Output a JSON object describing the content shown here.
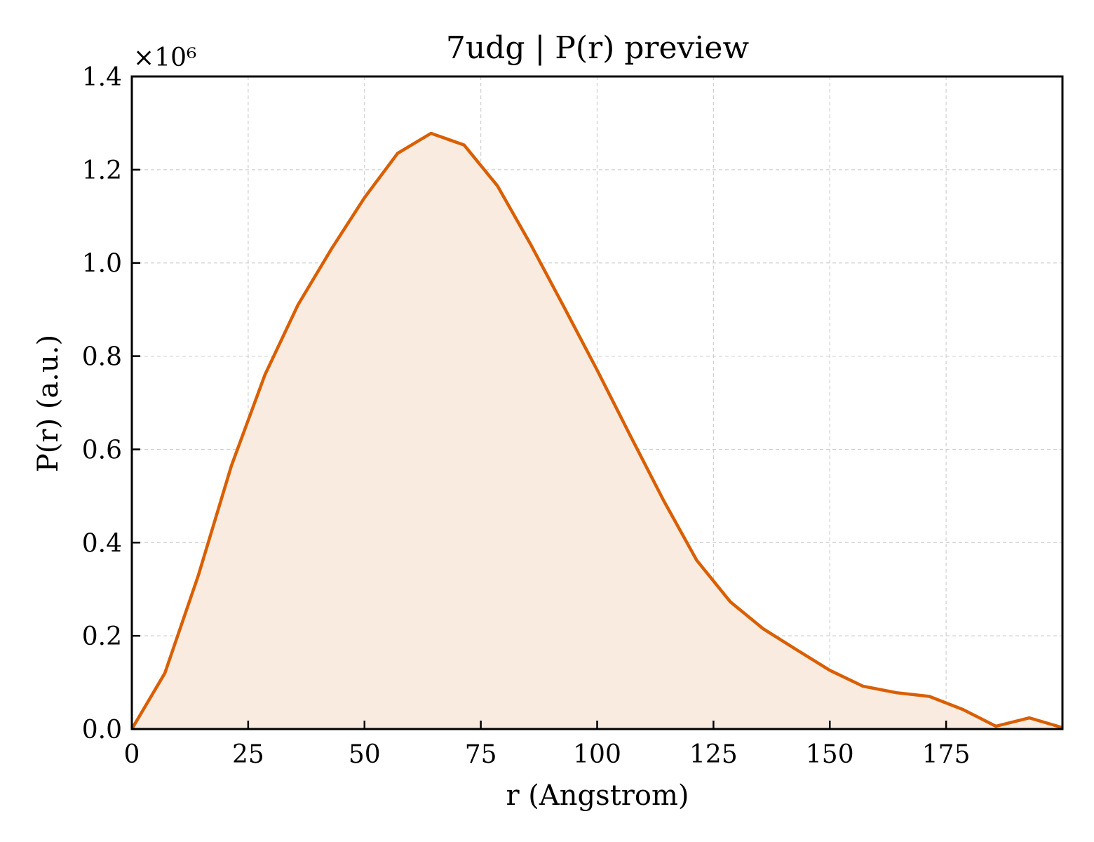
{
  "chart_data": {
    "type": "area",
    "title": "7udg | P(r) preview",
    "xlabel": "r (Angstrom)",
    "ylabel": "P(r) (a.u.)",
    "y_offset_label": "×10⁶",
    "xlim": [
      0,
      200
    ],
    "ylim": [
      0,
      1.4
    ],
    "x_ticks": [
      0,
      25,
      50,
      75,
      100,
      125,
      150,
      175
    ],
    "x_tick_labels": [
      "0",
      "25",
      "50",
      "75",
      "100",
      "125",
      "150",
      "175"
    ],
    "y_ticks": [
      0,
      0.2,
      0.4,
      0.6,
      0.8,
      1.0,
      1.2,
      1.4
    ],
    "y_tick_labels": [
      "0.0",
      "0.2",
      "0.4",
      "0.6",
      "0.8",
      "1.0",
      "1.2",
      "1.4"
    ],
    "grid": true,
    "line_color": "#d95f02",
    "fill_color": "#f9ebe0",
    "series": [
      {
        "x": [
          0,
          7.1,
          14.3,
          21.4,
          28.6,
          35.7,
          42.9,
          50.0,
          57.1,
          64.3,
          71.4,
          78.6,
          85.7,
          92.9,
          100.0,
          107.1,
          114.3,
          121.4,
          128.6,
          135.7,
          142.9,
          150.0,
          157.1,
          164.3,
          171.4,
          178.6,
          185.7,
          192.9,
          200.0
        ],
        "y": [
          0.0,
          0.12,
          0.33,
          0.565,
          0.76,
          0.91,
          1.03,
          1.14,
          1.235,
          1.278,
          1.253,
          1.165,
          1.04,
          0.905,
          0.77,
          0.63,
          0.49,
          0.362,
          0.273,
          0.215,
          0.17,
          0.126,
          0.092,
          0.078,
          0.07,
          0.042,
          0.006,
          0.024,
          0.003
        ]
      }
    ]
  }
}
